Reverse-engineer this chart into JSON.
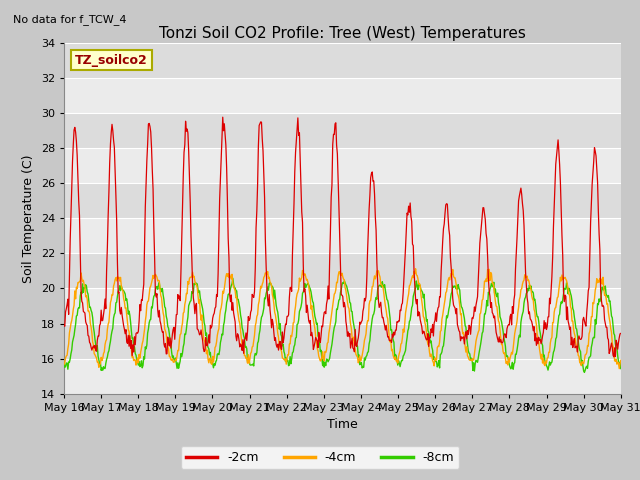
{
  "title": "Tonzi Soil CO2 Profile: Tree (West) Temperatures",
  "no_data_text": "No data for f_TCW_4",
  "xlabel": "Time",
  "ylabel": "Soil Temperature (C)",
  "ylim": [
    14,
    34
  ],
  "yticks": [
    14,
    16,
    18,
    20,
    22,
    24,
    26,
    28,
    30,
    32,
    34
  ],
  "xlim_start": 16,
  "xlim_end": 31,
  "line_colors": {
    "m2cm": "#dd0000",
    "m4cm": "#ffa500",
    "m8cm": "#33cc00"
  },
  "legend_labels": [
    "-2cm",
    "-4cm",
    "-8cm"
  ],
  "bg_color_dark": "#dcdcdc",
  "bg_color_light": "#ebebeb",
  "fig_bg_color": "#c8c8c8",
  "legend_box_color": "#ffffcc",
  "legend_box_edge": "#aaaa00",
  "inset_label": "TZ_soilco2",
  "title_fontsize": 11,
  "axis_fontsize": 9,
  "tick_fontsize": 8,
  "no_data_fontsize": 8
}
